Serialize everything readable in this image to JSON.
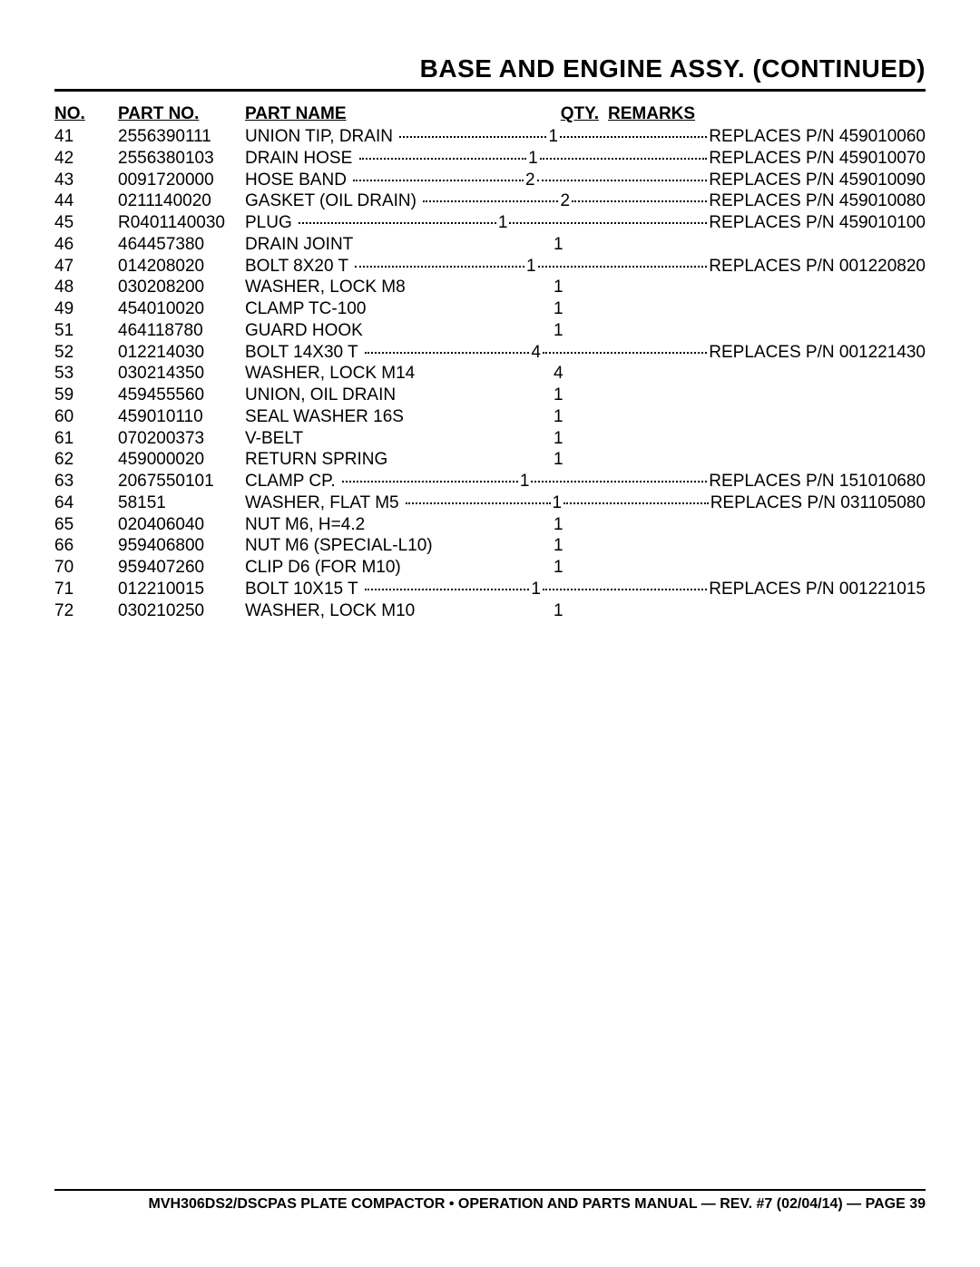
{
  "title": "BASE AND ENGINE ASSY. (CONTINUED)",
  "headers": {
    "no": "NO.",
    "part_no": "PART NO.",
    "part_name": "PART NAME",
    "qty": "QTY.",
    "remarks": "REMARKS"
  },
  "rows": [
    {
      "no": "41",
      "pn": "2556390111",
      "name": "UNION TIP, DRAIN",
      "qty": "1",
      "rem": "REPLACES P/N 459010060"
    },
    {
      "no": "42",
      "pn": "2556380103",
      "name": "DRAIN HOSE",
      "qty": "1",
      "rem": "REPLACES P/N 459010070"
    },
    {
      "no": "43",
      "pn": "0091720000",
      "name": "HOSE BAND",
      "qty": "2",
      "rem": "REPLACES P/N 459010090"
    },
    {
      "no": "44",
      "pn": "0211140020",
      "name": "GASKET (OIL DRAIN)",
      "qty": "2",
      "rem": "REPLACES P/N 459010080"
    },
    {
      "no": "45",
      "pn": "R0401140030",
      "name": "PLUG",
      "qty": "1",
      "rem": "REPLACES P/N 459010100"
    },
    {
      "no": "46",
      "pn": "464457380",
      "name": "DRAIN JOINT",
      "qty": "1",
      "rem": ""
    },
    {
      "no": "47",
      "pn": "014208020",
      "name": "BOLT 8X20 T",
      "qty": "1",
      "rem": "REPLACES P/N 001220820"
    },
    {
      "no": "48",
      "pn": "030208200",
      "name": "WASHER, LOCK M8",
      "qty": "1",
      "rem": ""
    },
    {
      "no": "49",
      "pn": "454010020",
      "name": "CLAMP TC-100",
      "qty": "1",
      "rem": ""
    },
    {
      "no": "51",
      "pn": "464118780",
      "name": "GUARD HOOK",
      "qty": "1",
      "rem": ""
    },
    {
      "no": "52",
      "pn": "012214030",
      "name": "BOLT 14X30 T",
      "qty": "4",
      "rem": "REPLACES P/N 001221430"
    },
    {
      "no": "53",
      "pn": "030214350",
      "name": "WASHER, LOCK M14",
      "qty": "4",
      "rem": ""
    },
    {
      "no": "59",
      "pn": "459455560",
      "name": "UNION, OIL DRAIN",
      "qty": "1",
      "rem": ""
    },
    {
      "no": "60",
      "pn": "459010110",
      "name": "SEAL WASHER 16S",
      "qty": "1",
      "rem": ""
    },
    {
      "no": "61",
      "pn": "070200373",
      "name": "V-BELT",
      "qty": "1",
      "rem": ""
    },
    {
      "no": "62",
      "pn": "459000020",
      "name": "RETURN SPRING",
      "qty": "1",
      "rem": ""
    },
    {
      "no": "63",
      "pn": "2067550101",
      "name": "CLAMP CP.",
      "qty": "1",
      "rem": "REPLACES P/N 151010680"
    },
    {
      "no": "64",
      "pn": "58151",
      "name": "WASHER, FLAT M5",
      "qty": "1",
      "rem": "REPLACES P/N 031105080"
    },
    {
      "no": "65",
      "pn": "020406040",
      "name": "NUT M6, H=4.2",
      "qty": "1",
      "rem": ""
    },
    {
      "no": "66",
      "pn": "959406800",
      "name": "NUT M6 (SPECIAL-L10)",
      "qty": "1",
      "rem": ""
    },
    {
      "no": "70",
      "pn": "959407260",
      "name": "CLIP D6 (FOR M10)",
      "qty": "1",
      "rem": ""
    },
    {
      "no": "71",
      "pn": "012210015",
      "name": "BOLT 10X15 T",
      "qty": "1",
      "rem": "REPLACES P/N 001221015"
    },
    {
      "no": "72",
      "pn": "030210250",
      "name": "WASHER, LOCK M10",
      "qty": "1",
      "rem": ""
    }
  ],
  "footer": "MVH306DS2/DSCPAS PLATE COMPACTOR • OPERATION AND PARTS MANUAL — REV. #7 (02/04/14) — PAGE 39"
}
